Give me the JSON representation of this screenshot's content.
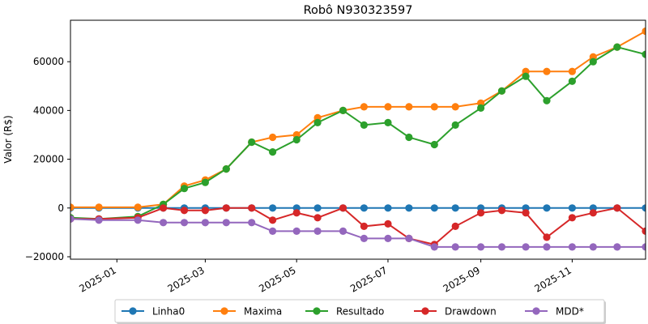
{
  "chart_data": {
    "type": "line",
    "title": "Robô N930323597",
    "xlabel": "",
    "ylabel": "Valor (R$)",
    "x_range": [
      "2024-12-01",
      "2025-12-20"
    ],
    "ylim": [
      -21000,
      77000
    ],
    "x_ticks": [
      "2025-01",
      "2025-03",
      "2025-05",
      "2025-07",
      "2025-09",
      "2025-11"
    ],
    "y_ticks": [
      -20000,
      0,
      20000,
      40000,
      60000
    ],
    "y_tick_labels": [
      "−20000",
      "0",
      "20000",
      "40000",
      "60000"
    ],
    "grid": false,
    "legend_position": "bottom-center",
    "marker": "circle",
    "x": [
      "2024-12-01",
      "2024-12-20",
      "2025-01-15",
      "2025-02-01",
      "2025-02-15",
      "2025-03-01",
      "2025-03-15",
      "2025-04-01",
      "2025-04-15",
      "2025-05-01",
      "2025-05-15",
      "2025-06-01",
      "2025-06-15",
      "2025-07-01",
      "2025-07-15",
      "2025-08-01",
      "2025-08-15",
      "2025-09-01",
      "2025-09-15",
      "2025-10-01",
      "2025-10-15",
      "2025-11-01",
      "2025-11-15",
      "2025-12-01",
      "2025-12-20"
    ],
    "series": [
      {
        "name": "Linha0",
        "color": "#1f77b4",
        "values": [
          0,
          0,
          0,
          0,
          0,
          0,
          0,
          0,
          0,
          0,
          0,
          0,
          0,
          0,
          0,
          0,
          0,
          0,
          0,
          0,
          0,
          0,
          0,
          0,
          0
        ]
      },
      {
        "name": "Maxima",
        "color": "#ff7f0e",
        "values": [
          300,
          300,
          300,
          1500,
          9000,
          11500,
          16000,
          27000,
          29000,
          30000,
          37000,
          40000,
          41500,
          41500,
          41500,
          41500,
          41500,
          43000,
          48000,
          56000,
          56000,
          56000,
          62000,
          66000,
          72500
        ]
      },
      {
        "name": "Resultado",
        "color": "#2ca02c",
        "values": [
          -4000,
          -4500,
          -3500,
          1500,
          8000,
          10500,
          16000,
          27000,
          23000,
          28000,
          35000,
          40000,
          34000,
          35000,
          29000,
          26000,
          34000,
          41000,
          48000,
          54000,
          44000,
          52000,
          60000,
          66000,
          63000
        ]
      },
      {
        "name": "Drawdown",
        "color": "#d62728",
        "values": [
          -4500,
          -4500,
          -4000,
          0,
          -1000,
          -1000,
          0,
          0,
          -5000,
          -2000,
          -4000,
          0,
          -7500,
          -6500,
          -12500,
          -15000,
          -7500,
          -2000,
          -1000,
          -2000,
          -12000,
          -4000,
          -2000,
          0,
          -9500
        ]
      },
      {
        "name": "MDD*",
        "color": "#9467bd",
        "values": [
          -4500,
          -5000,
          -5000,
          -6000,
          -6000,
          -6000,
          -6000,
          -6000,
          -9500,
          -9500,
          -9500,
          -9500,
          -12500,
          -12500,
          -12500,
          -16000,
          -16000,
          -16000,
          -16000,
          -16000,
          -16000,
          -16000,
          -16000,
          -16000,
          -16000
        ]
      }
    ]
  }
}
